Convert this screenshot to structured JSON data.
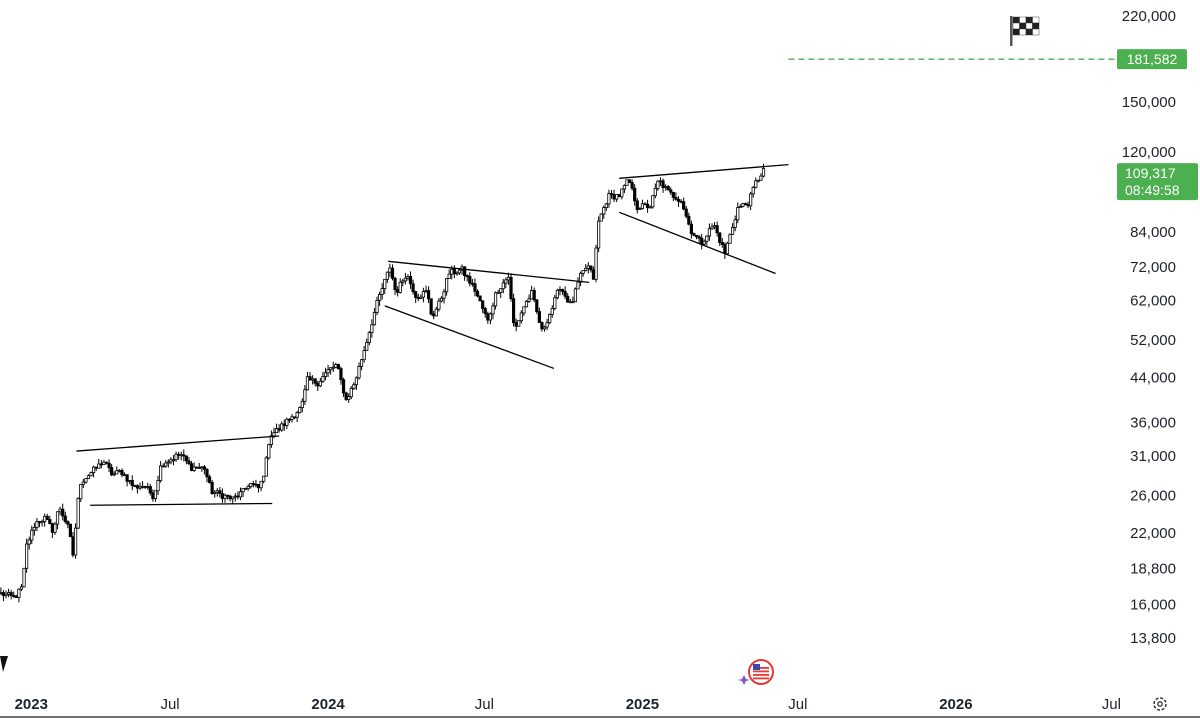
{
  "chart_data": {
    "type": "candlestick",
    "y_scale": "log",
    "ylim": [
      12500,
      225000
    ],
    "xlim": [
      "2022-12-15",
      "2026-08-15"
    ],
    "y_ticks": [
      "220,000",
      "150,000",
      "120,000",
      "84,000",
      "72,000",
      "62,000",
      "52,000",
      "44,000",
      "36,000",
      "31,000",
      "26,000",
      "22,000",
      "18,800",
      "16,000",
      "13,800"
    ],
    "x_ticks": [
      {
        "label": "2023",
        "date": "2023-01-01",
        "bold": true
      },
      {
        "label": "Jul",
        "date": "2023-07-01",
        "bold": false
      },
      {
        "label": "2024",
        "date": "2024-01-01",
        "bold": true
      },
      {
        "label": "Jul",
        "date": "2024-07-01",
        "bold": false
      },
      {
        "label": "2025",
        "date": "2025-01-01",
        "bold": true
      },
      {
        "label": "Jul",
        "date": "2025-07-01",
        "bold": false
      },
      {
        "label": "2026",
        "date": "2026-01-01",
        "bold": true
      },
      {
        "label": "Jul",
        "date": "2026-07-01",
        "bold": false
      }
    ],
    "price_path": [
      [
        "2022-12-16",
        16800
      ],
      [
        "2023-01-01",
        16500
      ],
      [
        "2023-01-10",
        17300
      ],
      [
        "2023-01-15",
        20800
      ],
      [
        "2023-01-25",
        23000
      ],
      [
        "2023-02-05",
        23500
      ],
      [
        "2023-02-15",
        22200
      ],
      [
        "2023-02-22",
        24800
      ],
      [
        "2023-03-05",
        22400
      ],
      [
        "2023-03-10",
        20000
      ],
      [
        "2023-03-18",
        27500
      ],
      [
        "2023-03-28",
        28500
      ],
      [
        "2023-04-10",
        29800
      ],
      [
        "2023-04-14",
        30400
      ],
      [
        "2023-04-25",
        28500
      ],
      [
        "2023-05-05",
        29000
      ],
      [
        "2023-05-20",
        27000
      ],
      [
        "2023-06-01",
        27200
      ],
      [
        "2023-06-12",
        25900
      ],
      [
        "2023-06-21",
        30000
      ],
      [
        "2023-07-01",
        30500
      ],
      [
        "2023-07-13",
        31300
      ],
      [
        "2023-07-25",
        29500
      ],
      [
        "2023-08-10",
        29400
      ],
      [
        "2023-08-18",
        26500
      ],
      [
        "2023-09-01",
        26000
      ],
      [
        "2023-09-12",
        25600
      ],
      [
        "2023-09-25",
        26500
      ],
      [
        "2023-10-01",
        27500
      ],
      [
        "2023-10-13",
        26800
      ],
      [
        "2023-10-20",
        29500
      ],
      [
        "2023-10-25",
        34000
      ],
      [
        "2023-11-05",
        35000
      ],
      [
        "2023-11-20",
        37000
      ],
      [
        "2023-12-01",
        38500
      ],
      [
        "2023-12-08",
        43500
      ],
      [
        "2023-12-20",
        43000
      ],
      [
        "2024-01-02",
        45500
      ],
      [
        "2024-01-11",
        46500
      ],
      [
        "2024-01-22",
        39800
      ],
      [
        "2024-02-01",
        43000
      ],
      [
        "2024-02-15",
        51800
      ],
      [
        "2024-02-28",
        62000
      ],
      [
        "2024-03-05",
        66000
      ],
      [
        "2024-03-13",
        72000
      ],
      [
        "2024-03-20",
        64000
      ],
      [
        "2024-04-01",
        70000
      ],
      [
        "2024-04-13",
        63000
      ],
      [
        "2024-04-25",
        64500
      ],
      [
        "2024-05-01",
        57500
      ],
      [
        "2024-05-10",
        61500
      ],
      [
        "2024-05-21",
        70000
      ],
      [
        "2024-06-05",
        71000
      ],
      [
        "2024-06-20",
        65000
      ],
      [
        "2024-07-05",
        56500
      ],
      [
        "2024-07-15",
        64500
      ],
      [
        "2024-07-29",
        69000
      ],
      [
        "2024-08-05",
        54000
      ],
      [
        "2024-08-15",
        60000
      ],
      [
        "2024-08-25",
        64000
      ],
      [
        "2024-09-06",
        54000
      ],
      [
        "2024-09-18",
        60000
      ],
      [
        "2024-09-27",
        66000
      ],
      [
        "2024-10-10",
        60500
      ],
      [
        "2024-10-20",
        68500
      ],
      [
        "2024-10-29",
        72500
      ],
      [
        "2024-11-05",
        68500
      ],
      [
        "2024-11-11",
        88000
      ],
      [
        "2024-11-22",
        98500
      ],
      [
        "2024-12-05",
        99000
      ],
      [
        "2024-12-16",
        106000
      ],
      [
        "2024-12-26",
        94000
      ],
      [
        "2025-01-10",
        94500
      ],
      [
        "2025-01-20",
        106000
      ],
      [
        "2025-02-01",
        100000
      ],
      [
        "2025-02-15",
        97000
      ],
      [
        "2025-02-26",
        85000
      ],
      [
        "2025-03-10",
        80000
      ],
      [
        "2025-03-25",
        87000
      ],
      [
        "2025-04-07",
        76500
      ],
      [
        "2025-04-22",
        93500
      ],
      [
        "2025-05-05",
        96000
      ],
      [
        "2025-05-12",
        104000
      ],
      [
        "2025-05-22",
        111000
      ]
    ],
    "trendlines": [
      {
        "start": [
          "2023-03-14",
          31700
        ],
        "end": [
          "2023-11-05",
          33900
        ]
      },
      {
        "start": [
          "2023-03-30",
          24900
        ],
        "end": [
          "2023-10-28",
          25100
        ]
      },
      {
        "start": [
          "2024-03-11",
          73800
        ],
        "end": [
          "2024-10-31",
          67200
        ]
      },
      {
        "start": [
          "2024-03-07",
          60500
        ],
        "end": [
          "2024-09-20",
          45800
        ]
      },
      {
        "start": [
          "2024-12-05",
          106800
        ],
        "end": [
          "2025-06-20",
          113500
        ]
      },
      {
        "start": [
          "2024-12-05",
          91800
        ],
        "end": [
          "2025-06-05",
          69900
        ]
      }
    ],
    "target": {
      "label": "181,582",
      "value": 181582,
      "start": "2025-06-20",
      "color": "#4caf50"
    },
    "current_price": {
      "label": "109,317",
      "countdown": "08:49:58",
      "color": "#4caf50"
    },
    "colors": {
      "candle": "#000000",
      "line": "#000000",
      "text": "#1e222d",
      "tag": "#4caf50"
    },
    "marker_icons": [
      "checkered-flag-icon",
      "us-flag-event-icon",
      "down-arrow-marker-icon"
    ]
  },
  "ui": {
    "settings_icon": "gear-icon"
  }
}
